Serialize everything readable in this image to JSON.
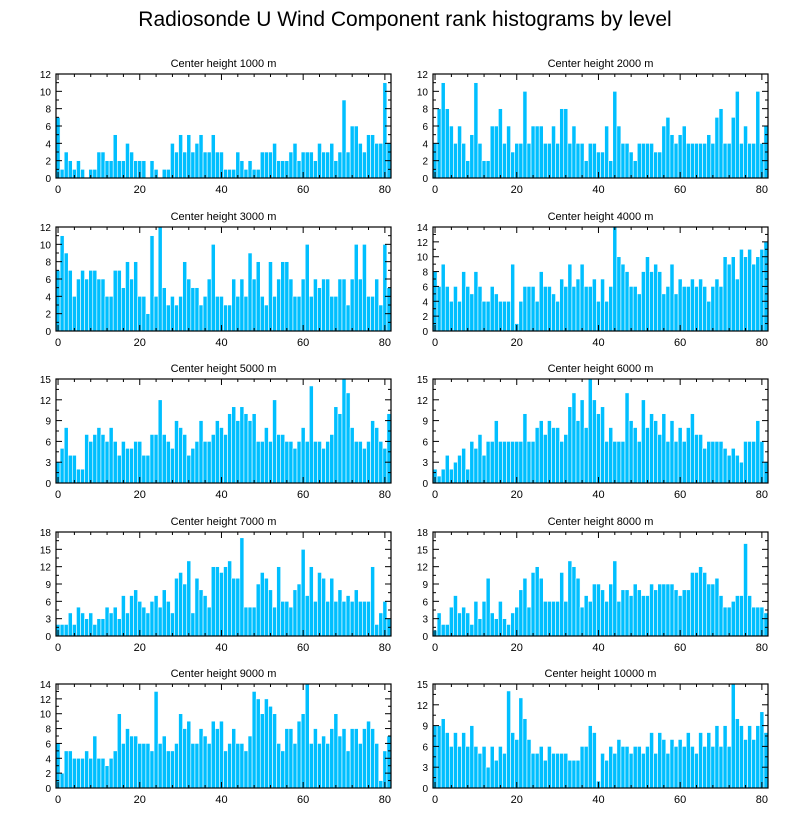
{
  "title": "Radiosonde U Wind Component rank histograms by level",
  "colors": {
    "bar": "#00bfff",
    "bar_edge": "#ffffff",
    "axis": "#000000"
  },
  "chart_data": [
    {
      "type": "bar",
      "title": "Center height 1000 m",
      "x_ticks": [
        0,
        20,
        40,
        60,
        80
      ],
      "ylim": [
        0,
        12
      ],
      "y_ticks": [
        0,
        2,
        4,
        6,
        8,
        10,
        12
      ],
      "values": [
        7,
        1,
        3,
        2,
        1,
        2,
        1,
        0,
        1,
        1,
        3,
        3,
        2,
        2,
        5,
        2,
        2,
        4,
        3,
        2,
        2,
        2,
        0,
        2,
        1,
        0,
        1,
        1,
        4,
        3,
        5,
        3,
        5,
        3,
        4,
        5,
        3,
        3,
        5,
        3,
        3,
        1,
        1,
        1,
        3,
        2,
        1,
        2,
        1,
        1,
        3,
        3,
        3,
        4,
        2,
        2,
        2,
        3,
        4,
        2,
        3,
        3,
        3,
        2,
        4,
        3,
        3,
        4,
        2,
        3,
        9,
        3,
        6,
        6,
        4,
        3,
        5,
        5,
        4,
        4,
        11,
        4
      ]
    },
    {
      "type": "bar",
      "title": "Center height 2000 m",
      "x_ticks": [
        0,
        20,
        40,
        60,
        80
      ],
      "ylim": [
        0,
        12
      ],
      "y_ticks": [
        0,
        2,
        4,
        6,
        8,
        10,
        12
      ],
      "values": [
        4,
        8,
        11,
        8,
        6,
        4,
        6,
        4,
        2,
        5,
        11,
        4,
        2,
        2,
        6,
        6,
        8,
        4,
        6,
        3,
        4,
        4,
        10,
        4,
        6,
        6,
        6,
        4,
        4,
        6,
        4,
        8,
        8,
        4,
        6,
        4,
        4,
        2,
        4,
        4,
        3,
        3,
        6,
        2,
        10,
        6,
        4,
        4,
        3,
        2,
        4,
        4,
        4,
        4,
        3,
        3,
        6,
        7,
        5,
        4,
        5,
        6,
        4,
        4,
        4,
        4,
        4,
        5,
        4,
        7,
        8,
        4,
        4,
        7,
        10,
        4,
        6,
        4,
        4,
        10,
        4,
        6
      ]
    },
    {
      "type": "bar",
      "title": "Center height 3000 m",
      "x_ticks": [
        0,
        20,
        40,
        60,
        80
      ],
      "ylim": [
        0,
        12
      ],
      "y_ticks": [
        0,
        2,
        4,
        6,
        8,
        10,
        12
      ],
      "values": [
        7,
        11,
        9,
        7,
        4,
        6,
        7,
        6,
        7,
        7,
        6,
        6,
        4,
        4,
        7,
        7,
        5,
        8,
        6,
        8,
        4,
        4,
        2,
        11,
        4,
        12,
        5,
        3,
        4,
        3,
        4,
        8,
        6,
        5,
        5,
        3,
        4,
        6,
        10,
        4,
        4,
        3,
        3,
        6,
        4,
        6,
        4,
        9,
        6,
        8,
        4,
        3,
        8,
        4,
        6,
        8,
        8,
        6,
        4,
        4,
        6,
        10,
        4,
        6,
        5,
        6,
        6,
        4,
        4,
        6,
        6,
        3,
        6,
        10,
        6,
        10,
        4,
        4,
        6,
        3,
        10,
        5
      ]
    },
    {
      "type": "bar",
      "title": "Center height 4000 m",
      "x_ticks": [
        0,
        20,
        40,
        60,
        80
      ],
      "ylim": [
        0,
        14
      ],
      "y_ticks": [
        0,
        2,
        4,
        6,
        8,
        10,
        12,
        14
      ],
      "values": [
        8,
        6,
        9,
        6,
        4,
        6,
        4,
        8,
        6,
        5,
        8,
        6,
        4,
        4,
        6,
        5,
        4,
        4,
        4,
        9,
        1,
        4,
        6,
        6,
        6,
        4,
        8,
        6,
        6,
        5,
        4,
        7,
        6,
        9,
        6,
        7,
        9,
        6,
        6,
        7,
        4,
        7,
        4,
        6,
        14,
        10,
        9,
        8,
        6,
        6,
        5,
        8,
        10,
        8,
        9,
        8,
        5,
        6,
        9,
        5,
        7,
        6,
        6,
        7,
        6,
        7,
        6,
        4,
        6,
        7,
        6,
        10,
        9,
        10,
        7,
        11,
        10,
        11,
        9,
        10,
        11,
        12
      ]
    },
    {
      "type": "bar",
      "title": "Center height 5000 m",
      "x_ticks": [
        0,
        20,
        40,
        60,
        80
      ],
      "ylim": [
        0,
        15
      ],
      "y_ticks": [
        0,
        3,
        6,
        9,
        12,
        15
      ],
      "values": [
        3,
        5,
        8,
        4,
        4,
        2,
        2,
        7,
        6,
        7,
        8,
        7,
        6,
        8,
        6,
        4,
        6,
        5,
        5,
        6,
        6,
        4,
        4,
        7,
        7,
        12,
        7,
        6,
        5,
        9,
        8,
        7,
        4,
        5,
        6,
        9,
        6,
        6,
        7,
        9,
        8,
        7,
        10,
        11,
        9,
        11,
        10,
        9,
        10,
        6,
        6,
        8,
        6,
        12,
        7,
        7,
        6,
        6,
        5,
        6,
        8,
        6,
        14,
        6,
        6,
        5,
        6,
        7,
        11,
        10,
        15,
        13,
        8,
        6,
        6,
        5,
        6,
        9,
        8,
        6,
        5,
        10
      ]
    },
    {
      "type": "bar",
      "title": "Center height 6000 m",
      "x_ticks": [
        0,
        20,
        40,
        60,
        80
      ],
      "ylim": [
        0,
        15
      ],
      "y_ticks": [
        0,
        3,
        6,
        9,
        12,
        15
      ],
      "values": [
        2,
        1,
        2,
        4,
        2,
        3,
        4,
        5,
        2,
        6,
        5,
        7,
        4,
        6,
        6,
        9,
        6,
        6,
        6,
        6,
        6,
        6,
        10,
        6,
        6,
        8,
        9,
        7,
        9,
        8,
        8,
        6,
        7,
        11,
        13,
        9,
        12,
        8,
        15,
        12,
        10,
        11,
        6,
        8,
        6,
        6,
        6,
        13,
        9,
        8,
        6,
        12,
        8,
        10,
        9,
        7,
        10,
        6,
        9,
        6,
        8,
        6,
        8,
        10,
        7,
        7,
        5,
        6,
        6,
        6,
        6,
        5,
        4,
        5,
        4,
        3,
        6,
        6,
        6,
        9,
        6,
        3
      ]
    },
    {
      "type": "bar",
      "title": "Center height 7000 m",
      "x_ticks": [
        0,
        20,
        40,
        60,
        80
      ],
      "ylim": [
        0,
        18
      ],
      "y_ticks": [
        0,
        3,
        6,
        9,
        12,
        15,
        18
      ],
      "values": [
        2,
        2,
        2,
        4,
        2,
        5,
        4,
        3,
        4,
        2,
        3,
        3,
        5,
        4,
        5,
        3,
        7,
        4,
        7,
        8,
        6,
        5,
        4,
        6,
        7,
        5,
        8,
        6,
        4,
        10,
        11,
        9,
        13,
        4,
        10,
        8,
        7,
        5,
        12,
        12,
        11,
        12,
        13,
        10,
        10,
        17,
        5,
        5,
        5,
        9,
        11,
        10,
        8,
        5,
        12,
        6,
        6,
        5,
        8,
        9,
        15,
        7,
        12,
        6,
        11,
        10,
        6,
        10,
        6,
        8,
        6,
        7,
        6,
        8,
        6,
        6,
        6,
        12,
        2,
        4,
        6,
        3
      ]
    },
    {
      "type": "bar",
      "title": "Center height 8000 m",
      "x_ticks": [
        0,
        20,
        40,
        60,
        80
      ],
      "ylim": [
        0,
        18
      ],
      "y_ticks": [
        0,
        3,
        6,
        9,
        12,
        15,
        18
      ],
      "values": [
        1,
        4,
        2,
        2,
        5,
        7,
        4,
        5,
        4,
        2,
        6,
        3,
        6,
        10,
        4,
        3,
        6,
        3,
        2,
        4,
        5,
        8,
        10,
        5,
        11,
        12,
        10,
        6,
        6,
        6,
        6,
        11,
        6,
        13,
        12,
        10,
        5,
        7,
        6,
        9,
        9,
        8,
        6,
        9,
        13,
        6,
        8,
        8,
        7,
        9,
        8,
        7,
        7,
        9,
        8,
        9,
        9,
        9,
        9,
        8,
        7,
        8,
        8,
        11,
        11,
        12,
        11,
        9,
        9,
        10,
        7,
        5,
        5,
        6,
        7,
        7,
        16,
        7,
        5,
        5,
        5,
        4
      ]
    },
    {
      "type": "bar",
      "title": "Center height 9000 m",
      "x_ticks": [
        0,
        20,
        40,
        60,
        80
      ],
      "ylim": [
        0,
        14
      ],
      "y_ticks": [
        0,
        2,
        4,
        6,
        8,
        10,
        12,
        14
      ],
      "values": [
        6,
        2,
        5,
        5,
        4,
        4,
        4,
        5,
        4,
        7,
        4,
        4,
        3,
        4,
        5,
        10,
        6,
        8,
        7,
        7,
        6,
        6,
        6,
        5,
        13,
        6,
        7,
        5,
        5,
        6,
        10,
        8,
        9,
        6,
        6,
        8,
        7,
        6,
        9,
        8,
        9,
        5,
        6,
        8,
        6,
        6,
        5,
        7,
        13,
        12,
        10,
        12,
        11,
        10,
        6,
        5,
        8,
        8,
        6,
        9,
        10,
        14,
        6,
        8,
        6,
        7,
        6,
        8,
        10,
        7,
        8,
        5,
        8,
        8,
        6,
        8,
        9,
        8,
        6,
        1,
        5,
        7
      ]
    },
    {
      "type": "bar",
      "title": "Center height 10000 m",
      "x_ticks": [
        0,
        20,
        40,
        60,
        80
      ],
      "ylim": [
        0,
        15
      ],
      "y_ticks": [
        0,
        3,
        6,
        9,
        12,
        15
      ],
      "values": [
        9,
        9,
        10,
        8,
        6,
        8,
        6,
        8,
        6,
        9,
        6,
        5,
        6,
        3,
        6,
        4,
        6,
        5,
        14,
        8,
        7,
        13,
        10,
        7,
        5,
        5,
        6,
        4,
        6,
        5,
        5,
        5,
        5,
        4,
        4,
        4,
        6,
        6,
        9,
        8,
        1,
        5,
        4,
        6,
        5,
        7,
        6,
        6,
        5,
        6,
        6,
        5,
        6,
        8,
        5,
        8,
        7,
        5,
        7,
        6,
        7,
        6,
        8,
        6,
        5,
        8,
        6,
        8,
        6,
        9,
        6,
        9,
        6,
        15,
        10,
        9,
        7,
        9,
        7,
        9,
        11,
        8
      ]
    }
  ]
}
